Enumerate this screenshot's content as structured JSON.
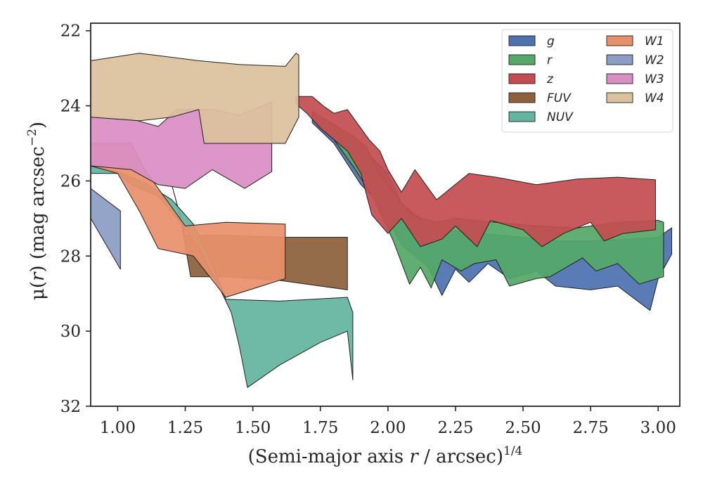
{
  "chart_data": {
    "type": "area",
    "xlabel_main": "(Semi-major axis ",
    "xlabel_var": "r",
    "xlabel_tail": " / arcsec)",
    "xlabel_exp": "1/4",
    "ylabel_main": "μ(",
    "ylabel_var": "r",
    "ylabel_tail": ") (mag arcsec",
    "ylabel_exp": "−2",
    "ylabel_close": ")",
    "xlim": [
      0.9,
      3.08
    ],
    "ylim": [
      32,
      21.8
    ],
    "y_inverted": true,
    "xticks": [
      1.0,
      1.25,
      1.5,
      1.75,
      2.0,
      2.25,
      2.5,
      2.75,
      3.0
    ],
    "xtick_labels": [
      "1.00",
      "1.25",
      "1.50",
      "1.75",
      "2.00",
      "2.25",
      "2.50",
      "2.75",
      "3.00"
    ],
    "yticks": [
      22,
      24,
      26,
      28,
      30,
      32
    ],
    "ytick_labels": [
      "22",
      "24",
      "26",
      "28",
      "30",
      "32"
    ],
    "grid": false,
    "legend_position": "top-right",
    "legend_columns": 2,
    "series": [
      {
        "name": "g",
        "color": "#4c72b0",
        "upper": [
          [
            1.72,
            24.25
          ],
          [
            1.8,
            24.6
          ],
          [
            1.87,
            24.9
          ],
          [
            1.93,
            25.3
          ],
          [
            2.0,
            25.8
          ],
          [
            2.05,
            26.6
          ],
          [
            2.1,
            26.9
          ],
          [
            2.2,
            27.3
          ],
          [
            2.35,
            27.4
          ],
          [
            2.5,
            27.5
          ],
          [
            2.62,
            27.6
          ],
          [
            2.75,
            27.6
          ],
          [
            2.9,
            27.55
          ],
          [
            3.0,
            27.5
          ],
          [
            3.05,
            27.25
          ]
        ],
        "lower": [
          [
            3.05,
            27.95
          ],
          [
            3.0,
            28.6
          ],
          [
            2.97,
            29.45
          ],
          [
            2.85,
            28.8
          ],
          [
            2.75,
            28.9
          ],
          [
            2.62,
            28.8
          ],
          [
            2.55,
            28.4
          ],
          [
            2.45,
            28.6
          ],
          [
            2.37,
            28.2
          ],
          [
            2.3,
            28.7
          ],
          [
            2.25,
            28.35
          ],
          [
            2.2,
            29.05
          ],
          [
            2.15,
            28.3
          ],
          [
            2.05,
            27.7
          ],
          [
            1.97,
            26.6
          ],
          [
            1.9,
            26.1
          ],
          [
            1.8,
            25.0
          ],
          [
            1.72,
            24.45
          ]
        ]
      },
      {
        "name": "r",
        "color": "#55a868",
        "upper": [
          [
            1.72,
            24.15
          ],
          [
            1.8,
            24.5
          ],
          [
            1.87,
            24.8
          ],
          [
            1.92,
            25.1
          ],
          [
            1.97,
            25.8
          ],
          [
            2.05,
            26.6
          ],
          [
            2.1,
            26.95
          ],
          [
            2.18,
            27.1
          ],
          [
            2.25,
            27.0
          ],
          [
            2.4,
            27.1
          ],
          [
            2.55,
            27.2
          ],
          [
            2.7,
            27.25
          ],
          [
            2.85,
            27.1
          ],
          [
            3.0,
            27.05
          ],
          [
            3.02,
            27.1
          ]
        ],
        "lower": [
          [
            3.02,
            28.55
          ],
          [
            2.93,
            28.75
          ],
          [
            2.85,
            28.2
          ],
          [
            2.77,
            28.4
          ],
          [
            2.72,
            28.05
          ],
          [
            2.6,
            28.55
          ],
          [
            2.55,
            28.6
          ],
          [
            2.45,
            28.8
          ],
          [
            2.4,
            28.1
          ],
          [
            2.32,
            28.2
          ],
          [
            2.27,
            28.4
          ],
          [
            2.2,
            28.1
          ],
          [
            2.16,
            28.85
          ],
          [
            2.12,
            28.3
          ],
          [
            2.08,
            28.75
          ],
          [
            2.02,
            27.6
          ],
          [
            1.95,
            26.5
          ],
          [
            1.88,
            25.7
          ],
          [
            1.8,
            24.9
          ],
          [
            1.72,
            24.35
          ]
        ]
      },
      {
        "name": "z",
        "color": "#c44e52",
        "upper": [
          [
            1.66,
            23.75
          ],
          [
            1.72,
            23.75
          ],
          [
            1.76,
            24.0
          ],
          [
            1.8,
            24.2
          ],
          [
            1.85,
            24.1
          ],
          [
            1.9,
            24.6
          ],
          [
            1.93,
            24.9
          ],
          [
            1.97,
            25.2
          ],
          [
            2.0,
            25.7
          ],
          [
            2.05,
            26.3
          ],
          [
            2.1,
            25.7
          ],
          [
            2.18,
            26.5
          ],
          [
            2.3,
            25.8
          ],
          [
            2.4,
            25.9
          ],
          [
            2.55,
            26.1
          ],
          [
            2.7,
            25.95
          ],
          [
            2.85,
            25.9
          ],
          [
            2.99,
            25.97
          ]
        ],
        "lower": [
          [
            2.99,
            27.3
          ],
          [
            2.87,
            27.4
          ],
          [
            2.8,
            27.6
          ],
          [
            2.75,
            27.1
          ],
          [
            2.65,
            27.4
          ],
          [
            2.57,
            27.75
          ],
          [
            2.5,
            27.3
          ],
          [
            2.38,
            27.05
          ],
          [
            2.33,
            27.75
          ],
          [
            2.25,
            27.2
          ],
          [
            2.2,
            27.55
          ],
          [
            2.12,
            27.75
          ],
          [
            2.05,
            27.0
          ],
          [
            2.0,
            27.4
          ],
          [
            1.94,
            26.9
          ],
          [
            1.9,
            25.8
          ],
          [
            1.85,
            25.2
          ],
          [
            1.8,
            24.9
          ],
          [
            1.75,
            24.6
          ],
          [
            1.7,
            24.2
          ],
          [
            1.66,
            23.95
          ]
        ]
      },
      {
        "name": "FUV",
        "color": "#8c613c",
        "upper": [
          [
            1.2,
            26.1
          ],
          [
            1.25,
            27.45
          ],
          [
            1.4,
            27.45
          ],
          [
            1.62,
            27.5
          ],
          [
            1.85,
            27.5
          ]
        ],
        "lower": [
          [
            1.85,
            28.9
          ],
          [
            1.6,
            28.65
          ],
          [
            1.4,
            28.55
          ],
          [
            1.27,
            28.55
          ],
          [
            1.23,
            26.9
          ],
          [
            1.2,
            26.1
          ]
        ]
      },
      {
        "name": "NUV",
        "color": "#64b5a0",
        "upper": [
          [
            0.9,
            25.6
          ],
          [
            1.0,
            25.75
          ],
          [
            1.1,
            26.05
          ],
          [
            1.2,
            26.5
          ],
          [
            1.28,
            27.15
          ],
          [
            1.35,
            28.2
          ],
          [
            1.4,
            29.15
          ],
          [
            1.6,
            29.2
          ],
          [
            1.85,
            29.1
          ],
          [
            1.87,
            29.5
          ],
          [
            1.87,
            31.3
          ]
        ],
        "lower": [
          [
            1.85,
            30.0
          ],
          [
            1.75,
            30.3
          ],
          [
            1.6,
            30.9
          ],
          [
            1.48,
            31.5
          ],
          [
            1.45,
            30.4
          ],
          [
            1.42,
            29.5
          ],
          [
            1.38,
            28.9
          ],
          [
            1.3,
            27.8
          ],
          [
            1.22,
            27.0
          ],
          [
            1.15,
            26.4
          ],
          [
            1.05,
            26.1
          ],
          [
            1.0,
            25.8
          ],
          [
            0.9,
            25.8
          ]
        ]
      },
      {
        "name": "W1",
        "color": "#e8906a",
        "upper": [
          [
            0.9,
            25.0
          ],
          [
            1.05,
            25.0
          ],
          [
            1.1,
            25.7
          ],
          [
            1.25,
            27.2
          ],
          [
            1.4,
            27.1
          ],
          [
            1.62,
            27.15
          ]
        ],
        "lower": [
          [
            1.62,
            28.6
          ],
          [
            1.4,
            29.1
          ],
          [
            1.28,
            28.0
          ],
          [
            1.15,
            27.8
          ],
          [
            1.08,
            26.8
          ],
          [
            1.0,
            25.8
          ],
          [
            0.9,
            25.6
          ]
        ]
      },
      {
        "name": "W2",
        "color": "#8c9dc4",
        "upper": [
          [
            0.9,
            26.2
          ],
          [
            1.01,
            26.8
          ]
        ],
        "lower": [
          [
            1.01,
            28.35
          ],
          [
            0.9,
            27.0
          ]
        ]
      },
      {
        "name": "W3",
        "color": "#d98ec4",
        "upper": [
          [
            0.9,
            24.3
          ],
          [
            1.05,
            24.35
          ],
          [
            1.15,
            24.55
          ],
          [
            1.22,
            24.1
          ],
          [
            1.35,
            24.1
          ],
          [
            1.45,
            24.25
          ],
          [
            1.57,
            23.9
          ]
        ],
        "lower": [
          [
            1.57,
            25.75
          ],
          [
            1.47,
            26.2
          ],
          [
            1.35,
            25.7
          ],
          [
            1.25,
            26.2
          ],
          [
            1.15,
            26.1
          ],
          [
            1.05,
            25.7
          ],
          [
            0.9,
            25.6
          ]
        ]
      },
      {
        "name": "W4",
        "color": "#dbc19d",
        "upper": [
          [
            0.9,
            22.8
          ],
          [
            1.08,
            22.6
          ],
          [
            1.3,
            22.8
          ],
          [
            1.45,
            22.9
          ],
          [
            1.62,
            22.95
          ],
          [
            1.66,
            22.6
          ],
          [
            1.67,
            22.65
          ]
        ],
        "lower": [
          [
            1.67,
            24.3
          ],
          [
            1.62,
            25.0
          ],
          [
            1.32,
            25.0
          ],
          [
            1.3,
            24.1
          ],
          [
            1.2,
            24.3
          ],
          [
            1.08,
            24.4
          ],
          [
            0.9,
            24.3
          ]
        ]
      }
    ]
  }
}
